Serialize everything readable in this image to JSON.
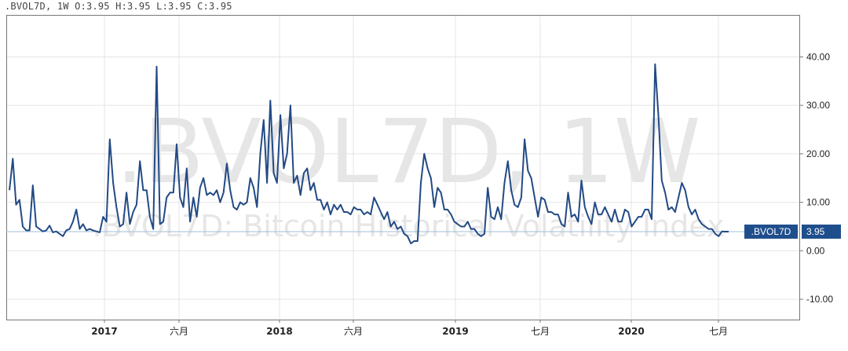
{
  "header": {
    "symbol": ".BVOL7D,",
    "interval": "1W",
    "o_label": "O:",
    "o_value": "3.95",
    "h_label": "H:",
    "h_value": "3.95",
    "l_label": "L:",
    "l_value": "3.95",
    "c_label": "C:",
    "c_value": "3.95"
  },
  "watermark": {
    "big": ".BVOL7D, 1W",
    "sub": ".BVOL7D: Bitcoin Historical Volatility Index"
  },
  "last_price": {
    "symbol": ".BVOL7D",
    "value": "3.95",
    "color": "#1f4e8c"
  },
  "colors": {
    "line": "#224a85",
    "grid": "#e4e4e4",
    "axis": "#777777",
    "price_line": "#9fbfd8"
  },
  "chart_data": {
    "type": "line",
    "series": [
      {
        "values": [
          12.5,
          19,
          9.5,
          10.5,
          5,
          4.2,
          4.2,
          13.5,
          5,
          4.5,
          4,
          4.2,
          5.2,
          3.8,
          4,
          3.5,
          3,
          4.2,
          4.5,
          6,
          8.5,
          4.5,
          5.5,
          4.2,
          4.5,
          4.2,
          4,
          3.8,
          7,
          6,
          23,
          14,
          9,
          5,
          5.5,
          12,
          5.5,
          8,
          9.5,
          18.5,
          12.5,
          12.5,
          7,
          4.5,
          38,
          5.5,
          6,
          11,
          12,
          12,
          22,
          11,
          9,
          17,
          6,
          11,
          7,
          13,
          15,
          11.5,
          12,
          11.5,
          12.5,
          10,
          12,
          18,
          12.5,
          9,
          8.5,
          10,
          9.5,
          10,
          15,
          13,
          9,
          20,
          27,
          14,
          31,
          16,
          14,
          28,
          17,
          20,
          30,
          14,
          15.5,
          11.5,
          16,
          17,
          12.5,
          14,
          10.5,
          10.5,
          8.5,
          10,
          7.5,
          9.5,
          8.5,
          9.5,
          8,
          8,
          7.5,
          9,
          8.5,
          8.5,
          7.5,
          8,
          7.5,
          11,
          9.5,
          8,
          6.5,
          8,
          5,
          6,
          4.5,
          5,
          3.5,
          3,
          1.5,
          2,
          2,
          14,
          20,
          17,
          15,
          9,
          13,
          12,
          8.5,
          8.5,
          7.5,
          6,
          5.5,
          5,
          5,
          6,
          4.5,
          4.5,
          3.5,
          3,
          3.5,
          13,
          7,
          6.5,
          9,
          6.5,
          14,
          18.5,
          12.5,
          9.5,
          9,
          11,
          23,
          16.5,
          15,
          11,
          7,
          11,
          10.5,
          8,
          8,
          7.5,
          7.5,
          5.5,
          5,
          12,
          7,
          7.5,
          6,
          14.5,
          9,
          7,
          5.5,
          10,
          7.5,
          7.5,
          9,
          7.5,
          6,
          8.5,
          6,
          6,
          8.5,
          8,
          5,
          6,
          7,
          7,
          8.5,
          8.5,
          6.5,
          38.5,
          28,
          14.5,
          12,
          8.5,
          9,
          8,
          11,
          14,
          12.5,
          9,
          7.5,
          8.5,
          6.5,
          5.5,
          5,
          4.5,
          4.5,
          3.5,
          3,
          4,
          3.95,
          3.95
        ]
      }
    ],
    "x_ticks": [
      "2017",
      "六月",
      "2018",
      "六月",
      "2019",
      "七月",
      "2020",
      "七月"
    ],
    "y_ticks": [
      "40.00",
      "30.00",
      "20.00",
      "10.00",
      "0.00",
      "-10.00"
    ],
    "y_tick_values": [
      40,
      30,
      20,
      10,
      0,
      -10
    ],
    "ylim": [
      -14.2,
      48.5
    ],
    "grid": true,
    "last_value": 3.95
  }
}
